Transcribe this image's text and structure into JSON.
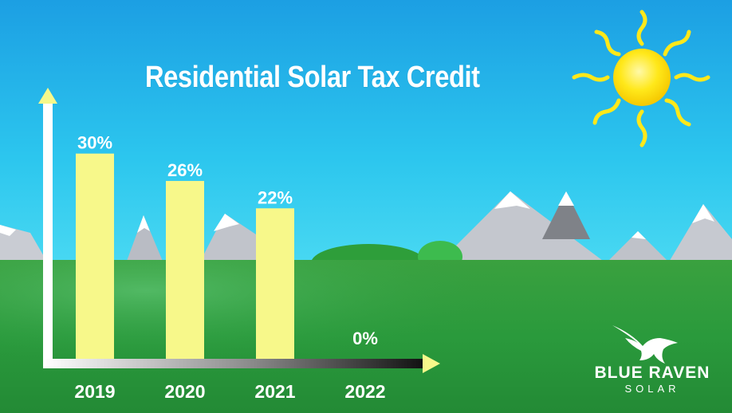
{
  "chart_data": {
    "type": "bar",
    "title": "Residential Solar Tax Credit",
    "categories": [
      "2019",
      "2020",
      "2021",
      "2022"
    ],
    "values": [
      30,
      26,
      22,
      0
    ],
    "value_labels": [
      "30%",
      "26%",
      "22%",
      "0%"
    ],
    "ylim": [
      0,
      38
    ],
    "xlabel": "",
    "ylabel": "",
    "grid": false,
    "legend": "none"
  },
  "logo": {
    "name": "BLUE RAVEN",
    "sub": "SOLAR"
  },
  "colors": {
    "sky_top": "#1aa7e6",
    "sky_bottom": "#36d2f0",
    "grass": "#2e9b3a",
    "bar": "#f7f88a",
    "label": "#ffffff",
    "axis_arrow": "#f7f88a",
    "sun": "#ffe81a"
  },
  "icons": {
    "sun": "sun-icon",
    "logo": "raven-logo-icon"
  }
}
